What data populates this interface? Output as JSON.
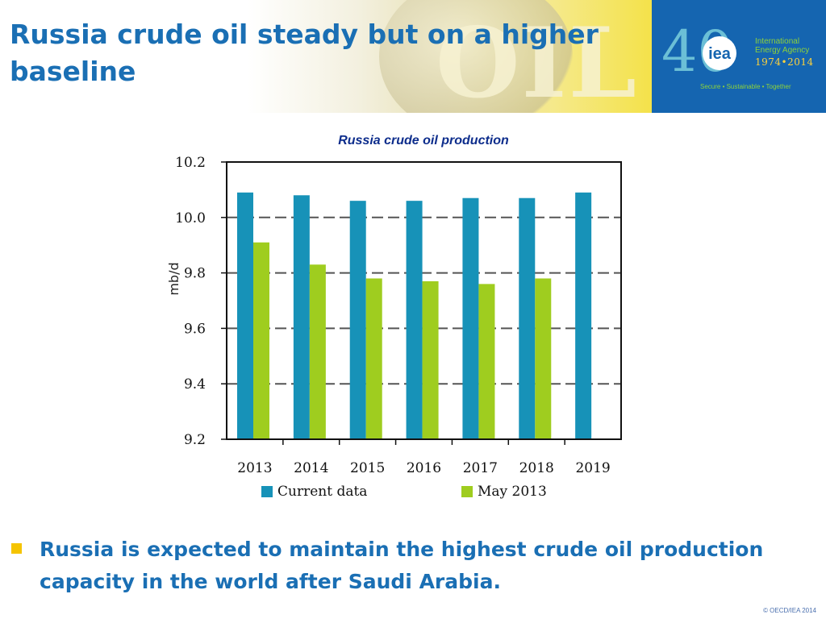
{
  "slide": {
    "title": "Russia crude oil steady but on a higher baseline",
    "banner_watermark": "OIL",
    "bullet": "Russia is expected to maintain the highest crude oil production capacity in the world after Saudi Arabia.",
    "copyright": "© OECD/IEA 2014"
  },
  "logo": {
    "number": "40",
    "mark": "iea",
    "org_name": "International Energy Agency",
    "years": "1974•2014",
    "tagline": "Secure • Sustainable • Together"
  },
  "colors": {
    "title_blue": "#1a6fb4",
    "logo_bg": "#1565b0",
    "bullet_square": "#f5c400"
  },
  "chart_data": {
    "type": "bar",
    "title": "Russia crude oil production",
    "xlabel": "",
    "ylabel": "mb/d",
    "categories": [
      "2013",
      "2014",
      "2015",
      "2016",
      "2017",
      "2018",
      "2019"
    ],
    "series": [
      {
        "name": "Current data",
        "color": "#1792b8",
        "values": [
          10.09,
          10.08,
          10.06,
          10.06,
          10.07,
          10.07,
          10.09
        ]
      },
      {
        "name": "May 2013",
        "color": "#9fcd1f",
        "values": [
          9.91,
          9.83,
          9.78,
          9.77,
          9.76,
          9.78,
          null
        ]
      }
    ],
    "ylim": [
      9.2,
      10.2
    ],
    "yticks": [
      "9.2",
      "9.4",
      "9.6",
      "9.8",
      "10.0",
      "10.2"
    ],
    "grid": true,
    "grid_style": "dashed",
    "legend": "bottom"
  }
}
